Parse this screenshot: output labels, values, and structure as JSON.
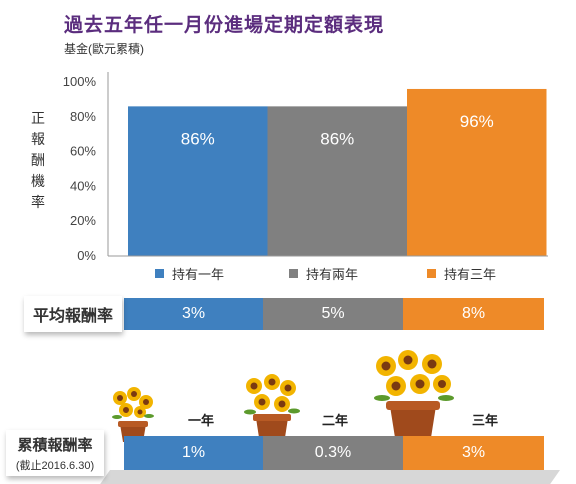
{
  "title": "過去五年任一月份進場定期定額表現",
  "subtitle": "基金(歐元累積)",
  "colors": {
    "one_year": "#3f80bf",
    "two_year": "#808080",
    "three_year": "#ee8a28",
    "title": "#5b2d7e"
  },
  "chart_data": {
    "type": "bar",
    "title": "過去五年任一月份進場定期定額表現",
    "subtitle": "基金(歐元累積)",
    "ylabel": "正報酬機率",
    "xlabel": "",
    "ylim": [
      0,
      100
    ],
    "y_ticks": [
      "0%",
      "20%",
      "40%",
      "60%",
      "80%",
      "100%"
    ],
    "categories": [
      "持有一年",
      "持有兩年",
      "持有三年"
    ],
    "values": [
      86,
      86,
      96
    ],
    "value_labels": [
      "86%",
      "86%",
      "96%"
    ],
    "legend": [
      "持有一年",
      "持有兩年",
      "持有三年"
    ],
    "legend_position": "bottom",
    "grid": false
  },
  "average_return": {
    "label": "平均報酬率",
    "values": [
      "3%",
      "5%",
      "8%"
    ]
  },
  "cumulative_return": {
    "label": "累積報酬率",
    "note": "(截止2016.6.30)",
    "pot_labels": [
      "一年",
      "二年",
      "三年"
    ],
    "values": [
      "1%",
      "0.3%",
      "3%"
    ]
  }
}
